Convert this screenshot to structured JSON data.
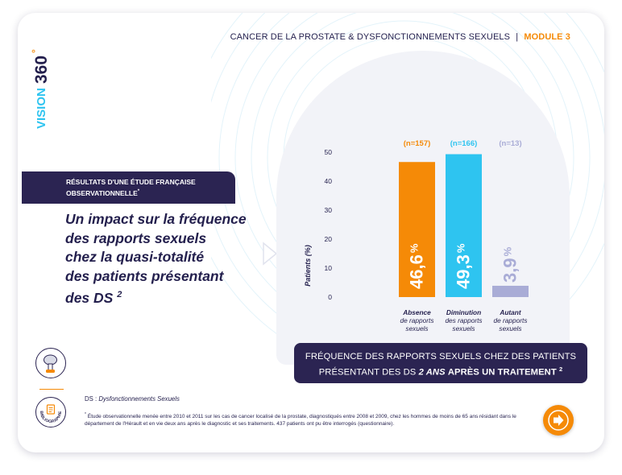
{
  "logo": {
    "word": "VISION",
    "number": "360",
    "degree": "°"
  },
  "header": {
    "title": "CANCER DE LA PROSTATE & DYSFONCTIONNEMENTS SEXUELS",
    "separator": "|",
    "module": "MODULE 3"
  },
  "banner": {
    "line1": "Résultats d'une étude française",
    "line2": "observationnelle",
    "ref": "*"
  },
  "headline": {
    "lines": [
      "Un impact sur la fréquence",
      "des rapports sexuels",
      "chez la quasi-totalité",
      "des patients présentant"
    ],
    "last_line": "des DS",
    "ref": "2"
  },
  "chart_data": {
    "type": "bar",
    "categories": [
      {
        "title": "Absence",
        "sub1": "de rapports",
        "sub2": "sexuels"
      },
      {
        "title": "Diminution",
        "sub1": "des rapports",
        "sub2": "sexuels"
      },
      {
        "title": "Autant",
        "sub1": "de rapports",
        "sub2": "sexuels"
      }
    ],
    "values": [
      46.6,
      49.3,
      3.9
    ],
    "value_labels": [
      "46,6",
      "49,3",
      "3,9"
    ],
    "value_unit": "%",
    "n_labels": [
      "(n=157)",
      "(n=166)",
      "(n=13)"
    ],
    "colors": [
      "#f58a07",
      "#2ec4f0",
      "#a9acd6"
    ],
    "n_colors": [
      "#f58a07",
      "#2ec4f0",
      "#a9acd6"
    ],
    "ylabel": "Patients (%)",
    "ylim": [
      0,
      50
    ],
    "yticks": [
      "0",
      "10",
      "20",
      "30",
      "40",
      "50"
    ],
    "ytick_values": [
      0,
      10,
      20,
      30,
      40,
      50
    ],
    "grid": false
  },
  "chart_caption": {
    "line1": "FRÉQUENCE DES RAPPORTS SEXUELS CHEZ DES PATIENTS",
    "line2_pre": "PRÉSENTANT DES DS",
    "line2_emph": "2 ANS",
    "line2_bold": "APRÈS UN TRAITEMENT",
    "ref": "2"
  },
  "biblio_icon": {
    "label": "BIBLIOGRAPHIE"
  },
  "ds_note": {
    "abbr": "DS :",
    "definition": "Dysfonctionnements Sexuels"
  },
  "footnote": {
    "marker": "*",
    "text": "Étude observationnelle menée entre 2010 et 2011 sur les cas de cancer localisé de la prostate, diagnostiqués entre 2008 et 2009, chez les hommes de moins de 65 ans résidant dans le département de l'Hérault et en vie deux ans après le diagnostic et ses traitements. 437 patients ont pu être interrogés (questionnaire)."
  },
  "colors": {
    "navy": "#2b2452",
    "orange": "#f58a07",
    "cyan": "#2ec4f0",
    "lavender": "#a9acd6"
  },
  "icons": {
    "pump": "vacuum-pump-icon",
    "biblio": "bibliography-icon",
    "next": "arrow-right-icon",
    "prev": "chevron-left-icon"
  }
}
